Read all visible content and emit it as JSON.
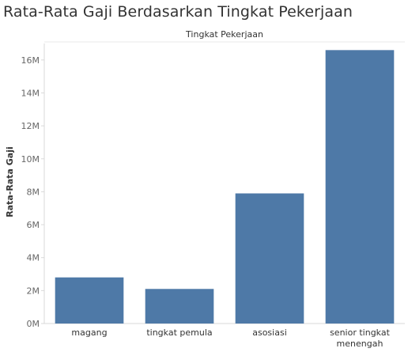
{
  "chart_data": {
    "type": "bar",
    "title": "Rata-Rata Gaji Berdasarkan Tingkat Pekerjaan",
    "header": "Tingkat Pekerjaan",
    "xlabel": "",
    "ylabel": "Rata-Rata Gaji",
    "categories": [
      [
        "magang"
      ],
      [
        "tingkat pemula"
      ],
      [
        "asosiasi"
      ],
      [
        "senior tingkat",
        "menengah"
      ]
    ],
    "values": [
      2800000,
      2100000,
      7900000,
      16600000
    ],
    "ylim": [
      0,
      17000000
    ],
    "yticks": [
      0,
      2000000,
      4000000,
      6000000,
      8000000,
      10000000,
      12000000,
      14000000,
      16000000
    ],
    "ytick_labels": [
      "0M",
      "2M",
      "4M",
      "6M",
      "8M",
      "10M",
      "12M",
      "14M",
      "16M"
    ],
    "bar_color": "#4e79a7",
    "grid": false
  }
}
